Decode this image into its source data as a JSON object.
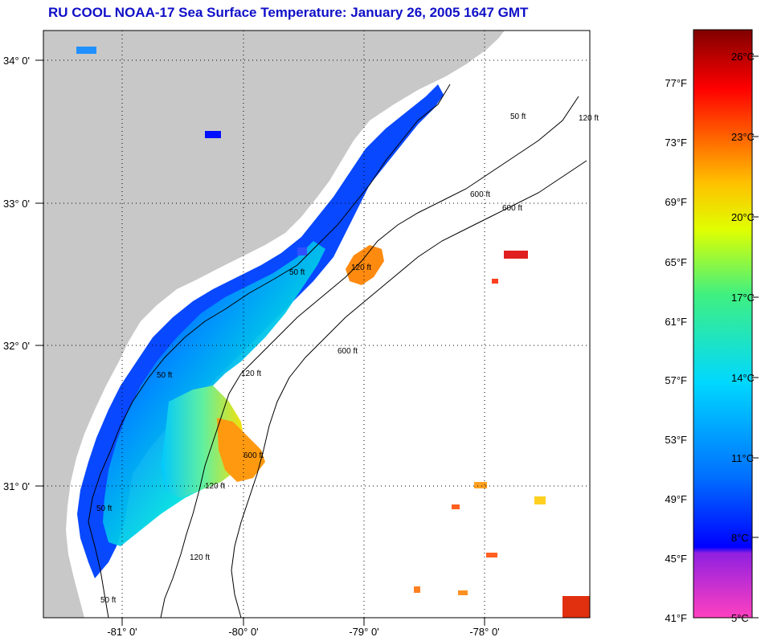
{
  "title": "RU COOL  NOAA-17  Sea Surface Temperature:  January 26, 2005 1647 GMT",
  "map": {
    "lon_range": [
      -81.65,
      -77.2
    ],
    "lat_range": [
      30.15,
      34.2
    ],
    "latitude_labels": [
      "34° 0'",
      "33° 0'",
      "32° 0'",
      "31° 0'"
    ],
    "longitude_labels": [
      "-81° 0'",
      "-80° 0'",
      "-79° 0'",
      "-78° 0'"
    ],
    "grid": "dotted",
    "land_color": "#c8c8c8",
    "no_data_color": "#ffffff",
    "depth_contour_labels": [
      "50 ft",
      "120 ft",
      "600 ft",
      "50 ft",
      "120 ft",
      "600 ft",
      "50 ft",
      "120 ft",
      "600 ft",
      "50 ft",
      "120 ft",
      "600 ft",
      "120 ft",
      "50 ft"
    ]
  },
  "colorbar": {
    "fahrenheit_labels": [
      "77°F",
      "73°F",
      "69°F",
      "65°F",
      "61°F",
      "57°F",
      "53°F",
      "49°F",
      "45°F",
      "41°F"
    ],
    "celsius_labels": [
      "26°C",
      "23°C",
      "20°C",
      "17°C",
      "14°C",
      "11°C",
      "8°C",
      "5°C"
    ],
    "colors": [
      "#ff40c0",
      "#9020e0",
      "#0000ff",
      "#0070ff",
      "#00d8ff",
      "#40f080",
      "#e0ff00",
      "#ffc000",
      "#ff6000",
      "#ff0000",
      "#800000"
    ]
  }
}
